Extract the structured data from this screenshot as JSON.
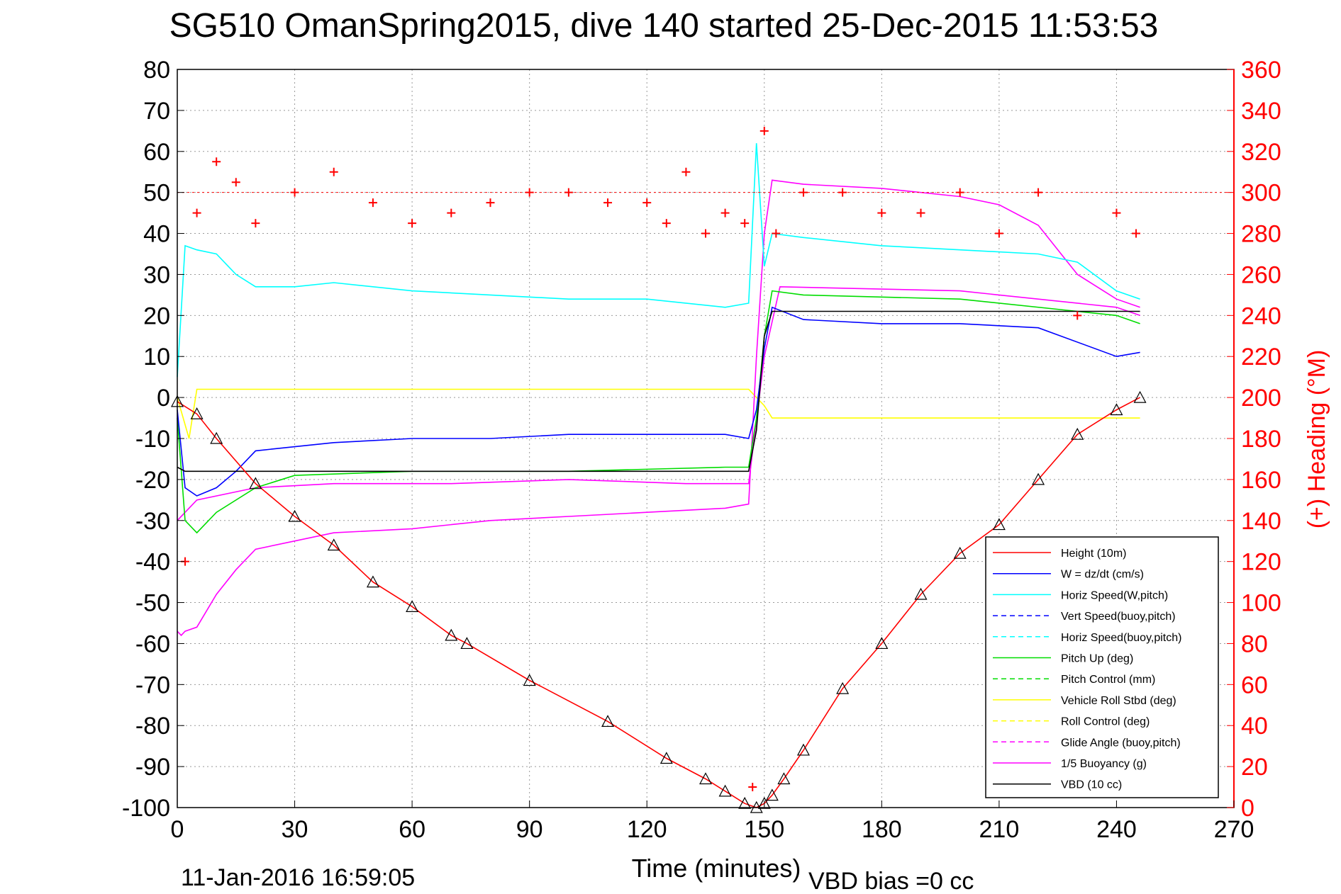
{
  "figure": {
    "title": "SG510 OmanSpring2015, dive 140 started 25-Dec-2015 11:53:53",
    "xlabel": "Time (minutes)",
    "ylabel_right": "(+) Heading (°M)",
    "footer_date": "11-Jan-2016 16:59:05",
    "footer_vbd": "VBD bias =0 cc"
  },
  "chart_data": {
    "type": "line",
    "title": "SG510 OmanSpring2015, dive 140 started 25-Dec-2015 11:53:53",
    "xlabel": "Time (minutes)",
    "ylabel_left": "",
    "ylabel_right": "(+) Heading (°M)",
    "xlim": [
      0,
      270
    ],
    "ylim": [
      -100,
      80
    ],
    "y2lim": [
      0,
      360
    ],
    "grid": true,
    "legend_position": "bottom-right",
    "x_ticks": [
      "0",
      "30",
      "60",
      "90",
      "120",
      "150",
      "180",
      "210",
      "240",
      "270"
    ],
    "y_ticks": [
      "80",
      "70",
      "60",
      "50",
      "40",
      "30",
      "20",
      "10",
      "0",
      "-10",
      "-20",
      "-30",
      "-40",
      "-50",
      "-60",
      "-70",
      "-80",
      "-90",
      "-100"
    ],
    "y2_ticks": [
      "360",
      "340",
      "320",
      "300",
      "280",
      "260",
      "240",
      "220",
      "200",
      "180",
      "160",
      "140",
      "120",
      "100",
      "80",
      "60",
      "40",
      "20",
      "0"
    ],
    "colors": {
      "height": "#ff0000",
      "w": "#0000ff",
      "horiz_w": "#00ffff",
      "pitch": "#00dd00",
      "roll": "#ffff00",
      "glide": "#ff00ff",
      "buoy": "#ff00ff",
      "vbd": "#000000",
      "heading": "#ff0000"
    },
    "series": [
      {
        "name": "Height (10m)",
        "key": "height",
        "x": [
          0,
          5,
          10,
          20,
          30,
          40,
          50,
          60,
          70,
          74,
          90,
          110,
          125,
          135,
          140,
          145,
          148,
          150,
          152,
          155,
          160,
          170,
          180,
          190,
          200,
          210,
          220,
          230,
          240,
          246
        ],
        "y": [
          -1,
          -4,
          -10,
          -21,
          -29,
          -36,
          -45,
          -51,
          -58,
          -60,
          -69,
          -79,
          -88,
          -93,
          -96,
          -99,
          -100,
          -99,
          -97,
          -93,
          -86,
          -71,
          -60,
          -48,
          -38,
          -31,
          -20,
          -9,
          -3,
          0
        ]
      },
      {
        "name": "W = dz/dt (cm/s)",
        "key": "w",
        "x": [
          0,
          2,
          5,
          10,
          15,
          20,
          30,
          40,
          60,
          80,
          100,
          120,
          140,
          146,
          148,
          150,
          152,
          160,
          180,
          200,
          220,
          240,
          246
        ],
        "y": [
          -3,
          -22,
          -24,
          -22,
          -18,
          -13,
          -12,
          -11,
          -10,
          -10,
          -9,
          -9,
          -9,
          -10,
          -3,
          12,
          22,
          19,
          18,
          18,
          17,
          10,
          11
        ]
      },
      {
        "name": "Horiz Speed(W,pitch)",
        "key": "horiz_w",
        "x": [
          0,
          2,
          5,
          10,
          15,
          20,
          30,
          40,
          60,
          80,
          100,
          120,
          140,
          146,
          148,
          150,
          152,
          160,
          180,
          200,
          220,
          230,
          240,
          246
        ],
        "y": [
          5,
          37,
          36,
          35,
          30,
          27,
          27,
          28,
          26,
          25,
          24,
          24,
          22,
          23,
          62,
          32,
          40,
          39,
          37,
          36,
          35,
          33,
          26,
          24
        ]
      },
      {
        "name": "Pitch Up (deg)",
        "key": "pitch",
        "x": [
          0,
          2,
          5,
          10,
          20,
          30,
          60,
          100,
          140,
          146,
          148,
          150,
          152,
          160,
          200,
          240,
          246
        ],
        "y": [
          -5,
          -30,
          -33,
          -28,
          -22,
          -19,
          -18,
          -18,
          -17,
          -17,
          -5,
          15,
          26,
          25,
          24,
          20,
          18
        ]
      },
      {
        "name": "Vehicle Roll Stbd (deg)",
        "key": "roll",
        "x": [
          0,
          3,
          5,
          146,
          148,
          150,
          152,
          246
        ],
        "y": [
          0,
          -10,
          2,
          2,
          0,
          -2,
          -5,
          -5
        ]
      },
      {
        "name": "Glide Angle (buoy,pitch)",
        "key": "glide",
        "x": [
          0,
          5,
          20,
          40,
          70,
          100,
          130,
          146,
          150,
          154,
          200,
          240,
          246
        ],
        "y": [
          -30,
          -25,
          -22,
          -21,
          -21,
          -20,
          -21,
          -21,
          10,
          27,
          26,
          22,
          20
        ]
      },
      {
        "name": "1/5 Buoyancy (g)",
        "key": "buoy",
        "x": [
          0,
          1,
          2,
          5,
          10,
          15,
          20,
          30,
          40,
          60,
          80,
          100,
          120,
          140,
          146,
          148,
          150,
          152,
          160,
          180,
          200,
          210,
          220,
          230,
          240,
          246
        ],
        "y": [
          -57,
          -58,
          -57,
          -56,
          -48,
          -42,
          -37,
          -35,
          -33,
          -32,
          -30,
          -29,
          -28,
          -27,
          -26,
          10,
          40,
          53,
          52,
          51,
          49,
          47,
          42,
          30,
          24,
          22
        ]
      },
      {
        "name": "VBD (10 cc)",
        "key": "vbd",
        "x": [
          0,
          2,
          146,
          148,
          150,
          152,
          246
        ],
        "y": [
          -17,
          -18,
          -18,
          -8,
          15,
          21,
          21
        ]
      },
      {
        "name": "Heading",
        "key": "heading",
        "x": [
          2,
          5,
          10,
          15,
          20,
          30,
          40,
          50,
          60,
          70,
          80,
          90,
          100,
          110,
          120,
          125,
          130,
          135,
          140,
          145,
          147,
          150,
          153,
          160,
          170,
          180,
          190,
          200,
          210,
          220,
          230,
          240,
          245
        ],
        "y2": [
          120,
          290,
          315,
          305,
          285,
          300,
          310,
          295,
          285,
          290,
          295,
          300,
          300,
          295,
          295,
          285,
          310,
          280,
          290,
          285,
          10,
          330,
          280,
          300,
          300,
          290,
          290,
          300,
          280,
          300,
          240,
          290,
          280
        ]
      }
    ]
  },
  "legend": {
    "items": [
      {
        "label": "Height (10m)",
        "style": "solid",
        "color": "#ff0000"
      },
      {
        "label": "W = dz/dt (cm/s)",
        "style": "solid",
        "color": "#0000ff"
      },
      {
        "label": "Horiz Speed(W,pitch)",
        "style": "solid",
        "color": "#00ffff"
      },
      {
        "label": "Vert Speed(buoy,pitch)",
        "style": "dashed",
        "color": "#0000ff"
      },
      {
        "label": "Horiz Speed(buoy,pitch)",
        "style": "dashed",
        "color": "#00ffff"
      },
      {
        "label": "Pitch Up (deg)",
        "style": "solid",
        "color": "#00dd00"
      },
      {
        "label": "Pitch Control (mm)",
        "style": "dashed",
        "color": "#00dd00"
      },
      {
        "label": "Vehicle Roll Stbd (deg)",
        "style": "solid",
        "color": "#ffff00"
      },
      {
        "label": "Roll Control (deg)",
        "style": "dashed",
        "color": "#ffff00"
      },
      {
        "label": "Glide Angle (buoy,pitch)",
        "style": "dashed",
        "color": "#ff00ff"
      },
      {
        "label": "1/5 Buoyancy (g)",
        "style": "solid",
        "color": "#ff00ff"
      },
      {
        "label": "VBD (10 cc)",
        "style": "solid",
        "color": "#000000"
      }
    ]
  }
}
